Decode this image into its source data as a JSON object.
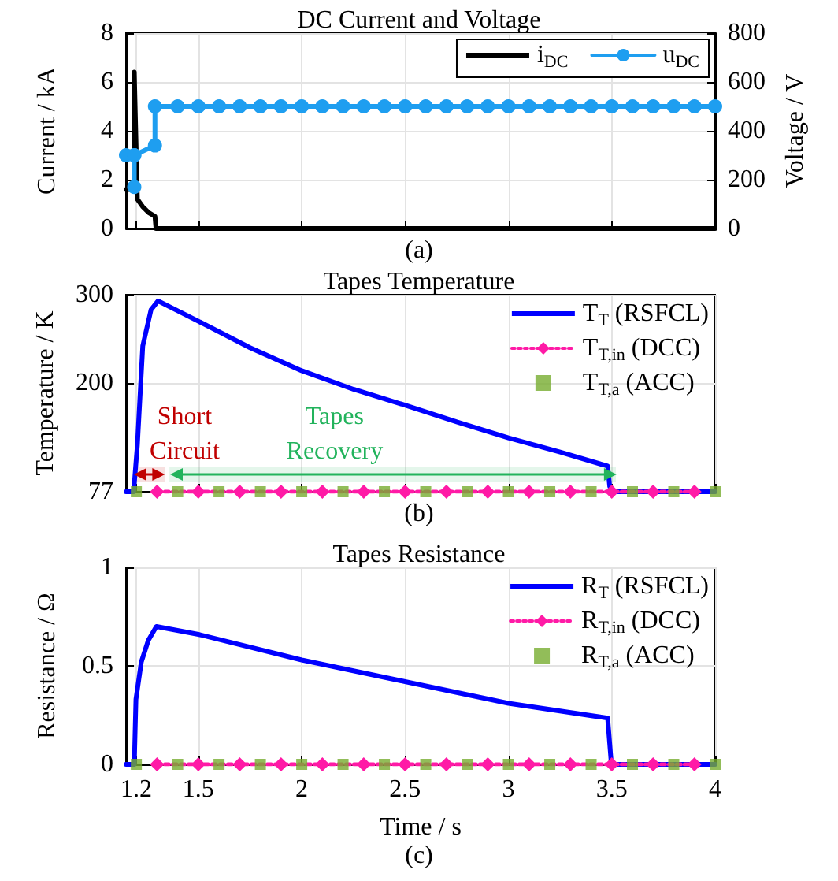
{
  "chart_data": [
    {
      "type": "line",
      "title": "DC Current and Voltage",
      "ylabel": "Current / kA",
      "y2label": "Voltage / V",
      "annotations": [
        "(a)"
      ],
      "xlim": [
        1.15,
        4
      ],
      "xticks": [
        1.2,
        1.5,
        2,
        2.5,
        3,
        3.5,
        4
      ],
      "ylim": [
        0,
        8
      ],
      "yticks": [
        0,
        2,
        4,
        6,
        8
      ],
      "y2lim": [
        0,
        800
      ],
      "y2ticks": [
        0,
        200,
        400,
        600,
        800
      ],
      "tick_labels": "y",
      "grid": true,
      "legend": "top right",
      "series": [
        {
          "name": "i$_{DC}$",
          "color": "#000000",
          "marker": "none",
          "x": [
            1.15,
            1.19,
            1.19,
            1.205,
            1.23,
            1.26,
            1.29,
            1.295,
            4
          ],
          "values": [
            1.6,
            1.6,
            6.4,
            1.2,
            0.9,
            0.65,
            0.5,
            0,
            0
          ]
        },
        {
          "name": "u$_{DC}$",
          "color": "#1e9ef0",
          "marker": "circle",
          "axis": "y2",
          "x": [
            1.15,
            1.19,
            1.19,
            1.19,
            1.29,
            1.29,
            1.4,
            1.5,
            1.6,
            1.7,
            1.8,
            1.9,
            2,
            2.1,
            2.2,
            2.3,
            2.4,
            2.5,
            2.6,
            2.7,
            2.8,
            2.9,
            3,
            3.1,
            3.2,
            3.3,
            3.4,
            3.5,
            3.6,
            3.7,
            3.8,
            3.9,
            4
          ],
          "values": [
            300,
            300,
            170,
            300,
            340,
            500,
            500,
            500,
            500,
            500,
            500,
            500,
            500,
            500,
            500,
            500,
            500,
            500,
            500,
            500,
            500,
            500,
            500,
            500,
            500,
            500,
            500,
            500,
            500,
            500,
            500,
            500,
            500
          ]
        }
      ]
    },
    {
      "type": "line",
      "title": "Tapes Temperature",
      "ylabel": "Temperature / K",
      "annotations": [
        "(b)"
      ],
      "xlim": [
        1.15,
        4
      ],
      "xticks": [
        1.2,
        1.5,
        2,
        2.5,
        3,
        3.5,
        4
      ],
      "ylim": [
        77,
        300
      ],
      "yticks": [
        77,
        200,
        300
      ],
      "tick_labels": "y",
      "grid": true,
      "legend": "top right",
      "bands": [
        {
          "axis": "x",
          "from": 1.19,
          "to": 1.34,
          "label": "Short Circuit",
          "color": "#c00000"
        },
        {
          "axis": "x",
          "from": 1.36,
          "to": 3.52,
          "label": "Tapes Recovery",
          "color": "#22b35c"
        }
      ],
      "series": [
        {
          "name": "T$_{T}$ (RSFCL)",
          "color": "#0000ff",
          "marker": "none",
          "x": [
            1.15,
            1.187,
            1.205,
            1.231,
            1.271,
            1.305,
            1.5,
            1.75,
            2,
            2.25,
            2.5,
            2.75,
            3,
            3.25,
            3.48,
            3.49,
            3.5,
            4
          ],
          "values": [
            77,
            77,
            130,
            242,
            283,
            293,
            270,
            240,
            214,
            193,
            175,
            156,
            138,
            122,
            106,
            83,
            77,
            77
          ]
        },
        {
          "name": "T$_{T,in}$ (DCC)",
          "color": "#ff1aa6",
          "marker": "diamond",
          "line_style": "dotted",
          "x": [
            1.3,
            1.5,
            1.7,
            1.9,
            2.1,
            2.3,
            2.5,
            2.7,
            2.9,
            3.1,
            3.3,
            3.5,
            3.7,
            3.9
          ],
          "values": [
            77,
            77,
            77,
            77,
            77,
            77,
            77,
            77,
            77,
            77,
            77,
            77,
            77,
            77
          ]
        },
        {
          "name": "T$_{T,a}$ (ACC)",
          "type": "scatter",
          "color": "#77ac30",
          "marker": "square",
          "x": [
            1.2,
            1.4,
            1.6,
            1.8,
            2,
            2.2,
            2.4,
            2.6,
            2.8,
            3,
            3.2,
            3.4,
            3.6,
            3.8,
            4
          ],
          "values": [
            77,
            77,
            77,
            77,
            77,
            77,
            77,
            77,
            77,
            77,
            77,
            77,
            77,
            77,
            77
          ]
        }
      ]
    },
    {
      "type": "line",
      "title": "Tapes Resistance",
      "ylabel": "Resistance / Ω",
      "xlabel": "Time / s",
      "annotations": [
        "(c)"
      ],
      "xlim": [
        1.15,
        4
      ],
      "xticks": [
        1.2,
        1.5,
        2,
        2.5,
        3,
        3.5,
        4
      ],
      "ylim": [
        0,
        1
      ],
      "yticks": [
        0,
        0.5,
        1
      ],
      "grid": true,
      "legend": "top right",
      "series": [
        {
          "name": "R$_{T}$ (RSFCL)",
          "color": "#0000ff",
          "marker": "none",
          "x": [
            1.15,
            1.19,
            1.198,
            1.224,
            1.258,
            1.297,
            1.5,
            2,
            2.5,
            3,
            3.48,
            3.498,
            4
          ],
          "values": [
            0,
            0,
            0.33,
            0.52,
            0.63,
            0.7,
            0.66,
            0.53,
            0.42,
            0.31,
            0.235,
            0,
            0
          ]
        },
        {
          "name": "R$_{T,in}$ (DCC)",
          "color": "#ff1aa6",
          "marker": "diamond",
          "line_style": "dotted",
          "x": [
            1.3,
            1.5,
            1.7,
            1.9,
            2.1,
            2.3,
            2.5,
            2.7,
            2.9,
            3.1,
            3.3,
            3.5,
            3.7,
            3.9
          ],
          "values": [
            0,
            0,
            0,
            0,
            0,
            0,
            0,
            0,
            0,
            0,
            0,
            0,
            0,
            0
          ]
        },
        {
          "name": "R$_{T,a}$ (ACC)",
          "type": "scatter",
          "color": "#77ac30",
          "marker": "square",
          "x": [
            1.2,
            1.4,
            1.6,
            1.8,
            2,
            2.2,
            2.4,
            2.6,
            2.8,
            3,
            3.2,
            3.4,
            3.6,
            3.8,
            4
          ],
          "values": [
            0,
            0,
            0,
            0,
            0,
            0,
            0,
            0,
            0,
            0,
            0,
            0,
            0,
            0,
            0
          ]
        }
      ]
    }
  ]
}
